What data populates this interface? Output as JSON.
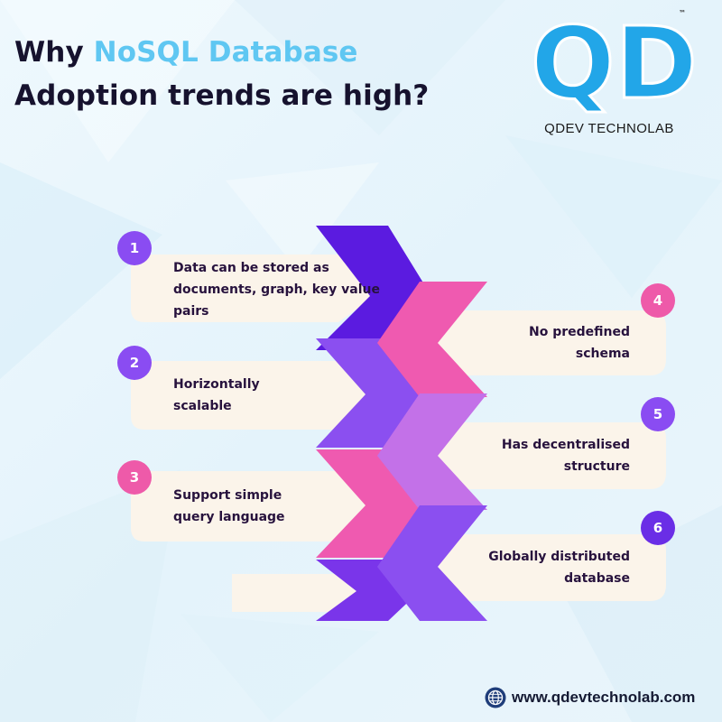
{
  "title": {
    "prefix": "Why ",
    "accent": "NoSQL Database",
    "line2": "Adoption trends are high?"
  },
  "brand": {
    "logo_letters": "QD",
    "trademark": "™",
    "company": "QDEV TECHNOLAB",
    "logo_color": "#22a6e8"
  },
  "points": [
    {
      "number": "1",
      "text": "Data can be stored as\ndocuments, graph, key value\npairs",
      "color": "#8a4cf2"
    },
    {
      "number": "2",
      "text": "Horizontally\nscalable",
      "color": "#8a4cf2"
    },
    {
      "number": "3",
      "text": "Support simple\nquery language",
      "color": "#ee5aa9"
    },
    {
      "number": "4",
      "text": "No predefined\nschema",
      "color": "#ee5aa9"
    },
    {
      "number": "5",
      "text": "Has decentralised\nstructure",
      "color": "#8a4cf2"
    },
    {
      "number": "6",
      "text": "Globally distributed\ndatabase",
      "color": "#6a2ee6"
    }
  ],
  "footer": {
    "icon": "globe-icon",
    "url": "www.qdevtechnolab.com"
  }
}
